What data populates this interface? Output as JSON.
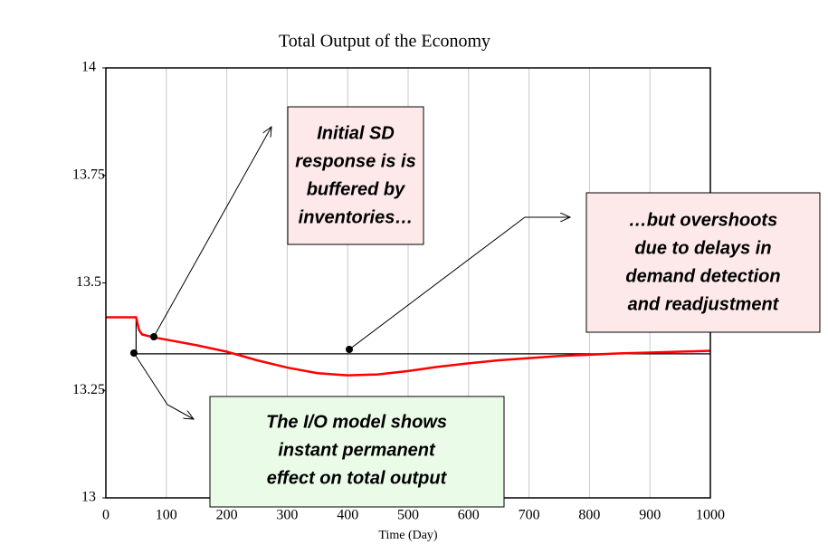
{
  "chart_data": {
    "type": "line",
    "title": "Total Output of the Economy",
    "x_label": "Time (Day)",
    "xlim": [
      0,
      1000
    ],
    "xticks": [
      0,
      100,
      200,
      300,
      400,
      500,
      600,
      700,
      800,
      900,
      1000
    ],
    "ylim": [
      13,
      14
    ],
    "yticks": [
      13,
      13.25,
      13.5,
      13.75,
      14
    ],
    "grid": true,
    "series": [
      {
        "color": "#ff0000",
        "x": [
          0,
          50,
          55,
          60,
          80,
          100,
          150,
          200,
          250,
          300,
          350,
          400,
          450,
          500,
          550,
          600,
          650,
          700,
          750,
          800,
          850,
          900,
          950,
          1000
        ],
        "values": [
          13.42,
          13.42,
          13.39,
          13.38,
          13.373,
          13.368,
          13.355,
          13.34,
          13.32,
          13.303,
          13.29,
          13.285,
          13.287,
          13.295,
          13.305,
          13.313,
          13.32,
          13.325,
          13.33,
          13.333,
          13.336,
          13.338,
          13.34,
          13.342
        ]
      },
      {
        "color": "#000000",
        "x": [
          0,
          50,
          50,
          1000
        ],
        "values": [
          13.42,
          13.42,
          13.335,
          13.335
        ]
      }
    ],
    "annotations": [
      {
        "lines": [
          "Initial SD",
          "response is is",
          "buffered by",
          "inventories…"
        ]
      },
      {
        "lines": [
          "…but overshoots",
          "due to delays in",
          "demand detection",
          "and readjustment"
        ]
      },
      {
        "lines": [
          "The I/O model shows",
          "instant permanent",
          "effect on total output"
        ]
      }
    ]
  }
}
